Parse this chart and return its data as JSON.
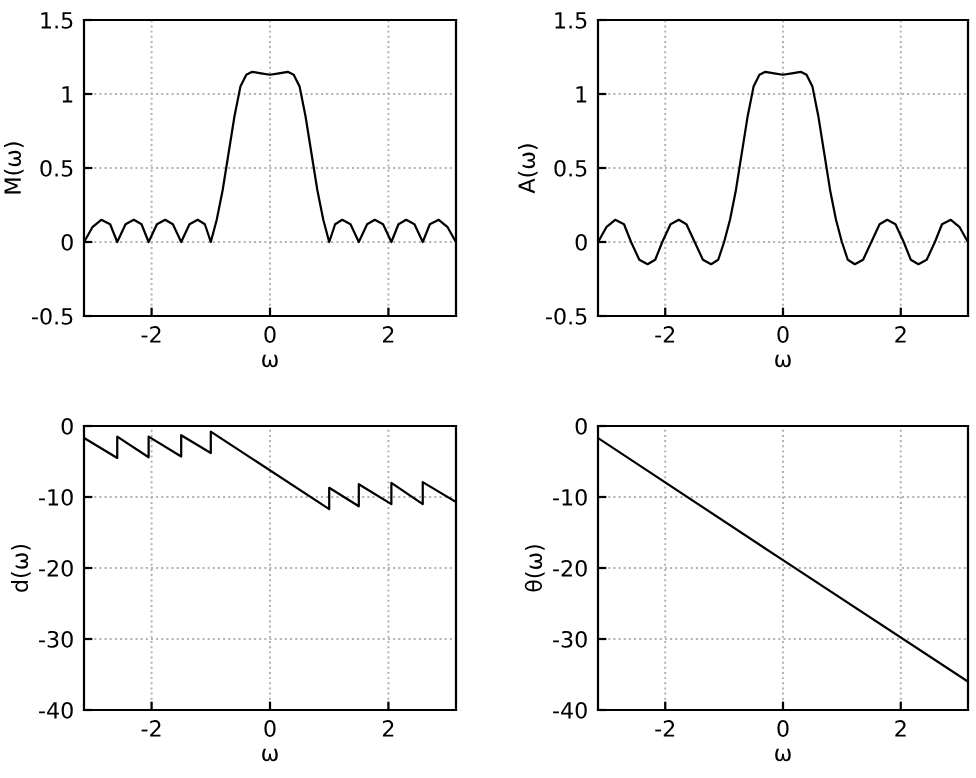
{
  "chart_data": [
    {
      "type": "line",
      "xlabel": "ω",
      "ylabel": "M(ω)",
      "xlim": [
        -3.1416,
        3.1416
      ],
      "ylim": [
        -0.5,
        1.5
      ],
      "xticks": [
        -2,
        0,
        2
      ],
      "yticks": [
        -0.5,
        0,
        0.5,
        1,
        1.5
      ],
      "grid": true,
      "line_style": "solid",
      "series": [
        {
          "color": "#000000",
          "x": [
            -3.14,
            -3.0,
            -2.85,
            -2.7,
            -2.58,
            -2.44,
            -2.3,
            -2.17,
            -2.05,
            -1.91,
            -1.77,
            -1.64,
            -1.5,
            -1.36,
            -1.22,
            -1.1,
            -1.0,
            -0.9,
            -0.8,
            -0.7,
            -0.6,
            -0.5,
            -0.4,
            -0.3,
            -0.15,
            0,
            0.15,
            0.3,
            0.4,
            0.5,
            0.6,
            0.7,
            0.8,
            0.9,
            1.0,
            1.1,
            1.22,
            1.36,
            1.5,
            1.64,
            1.77,
            1.91,
            2.05,
            2.17,
            2.3,
            2.44,
            2.58,
            2.7,
            2.85,
            3.0,
            3.14
          ],
          "values": [
            0.0,
            0.1,
            0.15,
            0.12,
            0.0,
            0.12,
            0.15,
            0.12,
            0.0,
            0.12,
            0.15,
            0.12,
            0.0,
            0.12,
            0.15,
            0.12,
            0.0,
            0.15,
            0.35,
            0.6,
            0.85,
            1.05,
            1.13,
            1.15,
            1.14,
            1.13,
            1.14,
            1.15,
            1.13,
            1.05,
            0.85,
            0.6,
            0.35,
            0.15,
            0.0,
            0.12,
            0.15,
            0.12,
            0.0,
            0.12,
            0.15,
            0.12,
            0.0,
            0.12,
            0.15,
            0.12,
            0.0,
            0.12,
            0.15,
            0.1,
            0.0
          ]
        }
      ]
    },
    {
      "type": "line",
      "xlabel": "ω",
      "ylabel": "A(ω)",
      "xlim": [
        -3.1416,
        3.1416
      ],
      "ylim": [
        -0.5,
        1.5
      ],
      "xticks": [
        -2,
        0,
        2
      ],
      "yticks": [
        -0.5,
        0,
        0.5,
        1,
        1.5
      ],
      "grid": true,
      "line_style": "solid",
      "series": [
        {
          "color": "#000000",
          "x": [
            -3.14,
            -3.0,
            -2.85,
            -2.7,
            -2.58,
            -2.44,
            -2.3,
            -2.17,
            -2.05,
            -1.91,
            -1.77,
            -1.64,
            -1.5,
            -1.36,
            -1.22,
            -1.1,
            -1.0,
            -0.9,
            -0.8,
            -0.7,
            -0.6,
            -0.5,
            -0.4,
            -0.3,
            -0.15,
            0,
            0.15,
            0.3,
            0.4,
            0.5,
            0.6,
            0.7,
            0.8,
            0.9,
            1.0,
            1.1,
            1.22,
            1.36,
            1.5,
            1.64,
            1.77,
            1.91,
            2.05,
            2.17,
            2.3,
            2.44,
            2.58,
            2.7,
            2.85,
            3.0,
            3.14
          ],
          "values": [
            0.0,
            0.1,
            0.15,
            0.12,
            0.0,
            -0.12,
            -0.15,
            -0.12,
            0.0,
            0.12,
            0.15,
            0.12,
            0.0,
            -0.12,
            -0.15,
            -0.12,
            0.0,
            0.15,
            0.35,
            0.6,
            0.85,
            1.05,
            1.13,
            1.15,
            1.14,
            1.13,
            1.14,
            1.15,
            1.13,
            1.05,
            0.85,
            0.6,
            0.35,
            0.15,
            0.0,
            -0.12,
            -0.15,
            -0.12,
            0.0,
            0.12,
            0.15,
            0.12,
            0.0,
            -0.12,
            -0.15,
            -0.12,
            0.0,
            0.12,
            0.15,
            0.1,
            0.0
          ]
        }
      ]
    },
    {
      "type": "line",
      "xlabel": "ω",
      "ylabel": "d(ω)",
      "xlim": [
        -3.1416,
        3.1416
      ],
      "ylim": [
        -40,
        0
      ],
      "xticks": [
        -2,
        0,
        2
      ],
      "yticks": [
        -40,
        -30,
        -20,
        -10,
        0
      ],
      "grid": true,
      "line_style": "solid",
      "series": [
        {
          "color": "#000000",
          "x": [
            -3.14,
            -2.58,
            -2.58,
            -2.05,
            -2.05,
            -1.5,
            -1.5,
            -1.0,
            -1.0,
            1.0,
            1.0,
            1.5,
            1.5,
            2.05,
            2.05,
            2.58,
            2.58,
            3.14
          ],
          "values": [
            -1.7,
            -4.5,
            -1.5,
            -4.4,
            -1.5,
            -4.3,
            -1.3,
            -3.8,
            -0.8,
            -11.7,
            -8.7,
            -11.3,
            -8.2,
            -11.0,
            -8.0,
            -11.0,
            -7.9,
            -10.7
          ]
        }
      ]
    },
    {
      "type": "line",
      "xlabel": "ω",
      "ylabel": "θ(ω)",
      "xlim": [
        -3.1416,
        3.1416
      ],
      "ylim": [
        -40,
        0
      ],
      "xticks": [
        -2,
        0,
        2
      ],
      "yticks": [
        -40,
        -30,
        -20,
        -10,
        0
      ],
      "grid": true,
      "line_style": "solid",
      "series": [
        {
          "color": "#000000",
          "x": [
            -3.14,
            0,
            3.14
          ],
          "values": [
            -1.7,
            -18.9,
            -36
          ]
        }
      ]
    }
  ]
}
